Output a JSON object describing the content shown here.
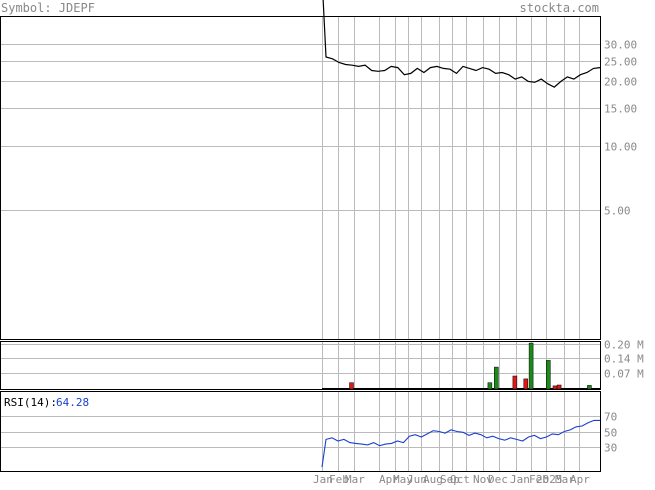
{
  "header": {
    "symbol_label": "Symbol: JDEPF",
    "site_label": "stockta.com"
  },
  "chart_data": [
    {
      "type": "line",
      "panel": "price",
      "scale": "log",
      "y_ticks": [
        "30.00",
        "25.00",
        "20.00",
        "15.00",
        "10.00",
        "5.00"
      ],
      "x_ticks": [
        "Jan",
        "Feb",
        "Mar",
        "Apr",
        "May",
        "Jun",
        "Aug",
        "Sep",
        "Oct",
        "Nov",
        "Dec",
        "Jan",
        "Feb",
        "2025",
        "Mar",
        "Apr"
      ],
      "series": [
        {
          "values": [
            330,
            26.0,
            25.5,
            24.5,
            24.0,
            23.8,
            23.5,
            23.8,
            22.5,
            22.3,
            22.5,
            23.5,
            23.2,
            21.5,
            21.8,
            23.0,
            22.0,
            23.2,
            23.5,
            23.0,
            22.8,
            21.8,
            23.5,
            23.0,
            22.5,
            23.2,
            22.8,
            21.8,
            22.0,
            21.5,
            20.5,
            21.0,
            20.0,
            19.8,
            20.5,
            19.5,
            18.8,
            20.0,
            21.0,
            20.5,
            21.5,
            22.0,
            23.0,
            23.2
          ]
        }
      ]
    },
    {
      "type": "bar",
      "panel": "volume",
      "unit": "M",
      "y_ticks": [
        "0.20 M",
        "0.14 M",
        "0.07 M"
      ],
      "bars": [
        {
          "x": 0.106,
          "value": 0.028,
          "color": "red"
        },
        {
          "x": 0.604,
          "value": 0.028,
          "color": "green"
        },
        {
          "x": 0.627,
          "value": 0.098,
          "color": "green"
        },
        {
          "x": 0.694,
          "value": 0.058,
          "color": "red"
        },
        {
          "x": 0.733,
          "value": 0.045,
          "color": "red"
        },
        {
          "x": 0.752,
          "value": 0.205,
          "color": "green"
        },
        {
          "x": 0.814,
          "value": 0.128,
          "color": "green"
        },
        {
          "x": 0.838,
          "value": 0.014,
          "color": "red"
        },
        {
          "x": 0.853,
          "value": 0.018,
          "color": "red"
        },
        {
          "x": 0.962,
          "value": 0.016,
          "color": "green"
        }
      ]
    },
    {
      "type": "line",
      "panel": "rsi",
      "label": "RSI(14):",
      "current_value": "64.28",
      "y_ticks": [
        "70",
        "50",
        "30"
      ],
      "ylim": [
        0,
        100
      ],
      "series": [
        {
          "values": [
            5,
            40,
            42,
            38,
            40,
            36,
            35,
            34,
            33,
            36,
            32,
            34,
            35,
            38,
            36,
            44,
            46,
            43,
            47,
            51,
            50,
            48,
            52,
            50,
            49,
            45,
            48,
            46,
            42,
            44,
            41,
            39,
            42,
            40,
            38,
            43,
            45,
            41,
            43,
            47,
            46,
            50,
            52,
            56,
            57,
            61,
            64,
            64
          ]
        }
      ]
    }
  ]
}
